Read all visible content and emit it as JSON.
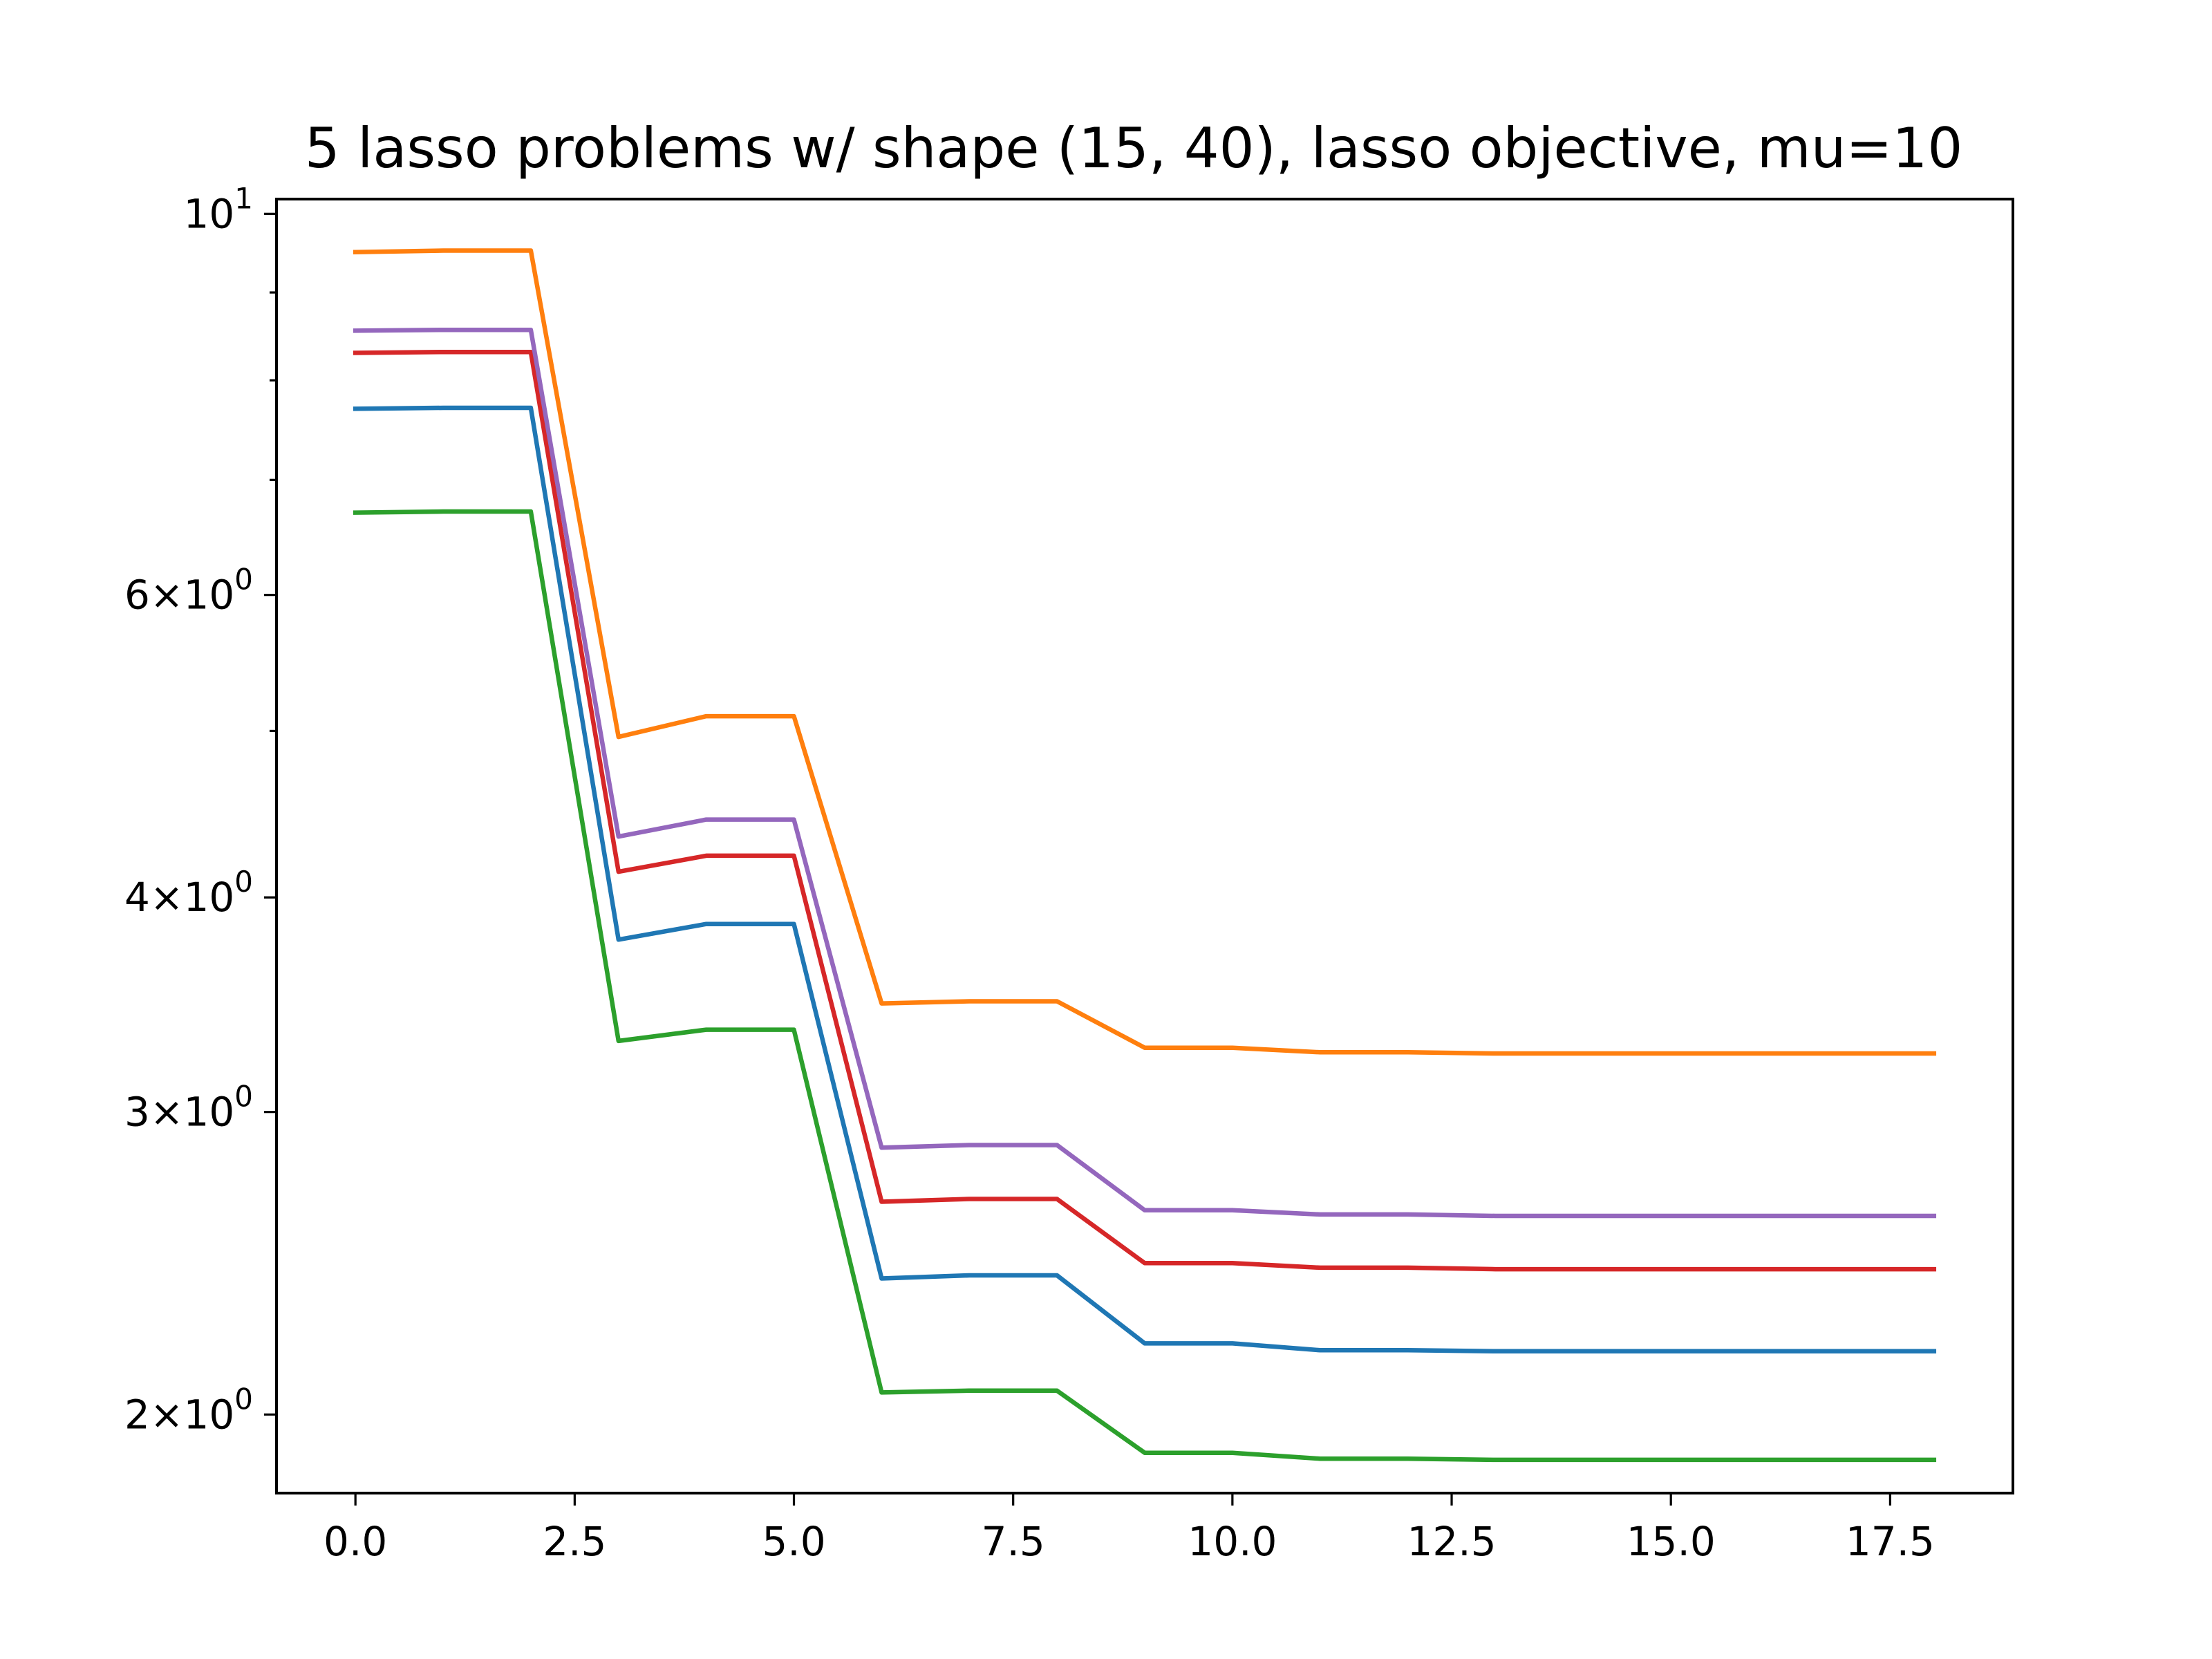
{
  "chart_data": {
    "type": "line",
    "title": "5 lasso problems w/ shape (15, 40), lasso objective, mu=10",
    "xlabel": "",
    "ylabel": "",
    "xlim": [
      -0.9,
      18.9
    ],
    "ylim": [
      1.8,
      10.2
    ],
    "yscale": "log",
    "grid": false,
    "x_ticks": [
      {
        "value": 0.0,
        "label": "0.0"
      },
      {
        "value": 2.5,
        "label": "2.5"
      },
      {
        "value": 5.0,
        "label": "5.0"
      },
      {
        "value": 7.5,
        "label": "7.5"
      },
      {
        "value": 10.0,
        "label": "10.0"
      },
      {
        "value": 12.5,
        "label": "12.5"
      },
      {
        "value": 15.0,
        "label": "15.0"
      },
      {
        "value": 17.5,
        "label": "17.5"
      }
    ],
    "y_major_ticks": [
      {
        "value": 2,
        "mantissa": "2",
        "base": "10",
        "exp": "0"
      },
      {
        "value": 3,
        "mantissa": "3",
        "base": "10",
        "exp": "0"
      },
      {
        "value": 4,
        "mantissa": "4",
        "base": "10",
        "exp": "0"
      },
      {
        "value": 6,
        "mantissa": "6",
        "base": "10",
        "exp": "0"
      },
      {
        "value": 10,
        "mantissa": "",
        "base": "10",
        "exp": "1"
      }
    ],
    "y_minor_ticks": [
      5,
      7,
      8,
      9
    ],
    "x": [
      0,
      1,
      2,
      3,
      4,
      5,
      6,
      7,
      8,
      9,
      10,
      11,
      12,
      13,
      14,
      15,
      16,
      17,
      18
    ],
    "series": [
      {
        "color": "#1f77b4",
        "values": [
          7.7,
          7.71,
          7.71,
          3.78,
          3.86,
          3.86,
          2.4,
          2.41,
          2.41,
          2.2,
          2.2,
          2.18,
          2.18,
          2.177,
          2.177,
          2.177,
          2.177,
          2.177,
          2.177
        ]
      },
      {
        "color": "#ff7f0e",
        "values": [
          9.5,
          9.52,
          9.52,
          4.96,
          5.1,
          5.1,
          3.47,
          3.48,
          3.48,
          3.27,
          3.27,
          3.25,
          3.25,
          3.245,
          3.245,
          3.245,
          3.245,
          3.245,
          3.245
        ]
      },
      {
        "color": "#2ca02c",
        "values": [
          6.7,
          6.71,
          6.71,
          3.3,
          3.35,
          3.35,
          2.06,
          2.065,
          2.065,
          1.9,
          1.9,
          1.885,
          1.885,
          1.882,
          1.882,
          1.882,
          1.882,
          1.882,
          1.882
        ]
      },
      {
        "color": "#d62728",
        "values": [
          8.3,
          8.31,
          8.31,
          4.14,
          4.23,
          4.23,
          2.66,
          2.67,
          2.67,
          2.45,
          2.45,
          2.435,
          2.435,
          2.43,
          2.43,
          2.43,
          2.43,
          2.43,
          2.43
        ]
      },
      {
        "color": "#9467bd",
        "values": [
          8.55,
          8.56,
          8.56,
          4.34,
          4.44,
          4.44,
          2.86,
          2.87,
          2.87,
          2.63,
          2.63,
          2.615,
          2.615,
          2.61,
          2.61,
          2.61,
          2.61,
          2.61,
          2.61
        ]
      }
    ]
  }
}
